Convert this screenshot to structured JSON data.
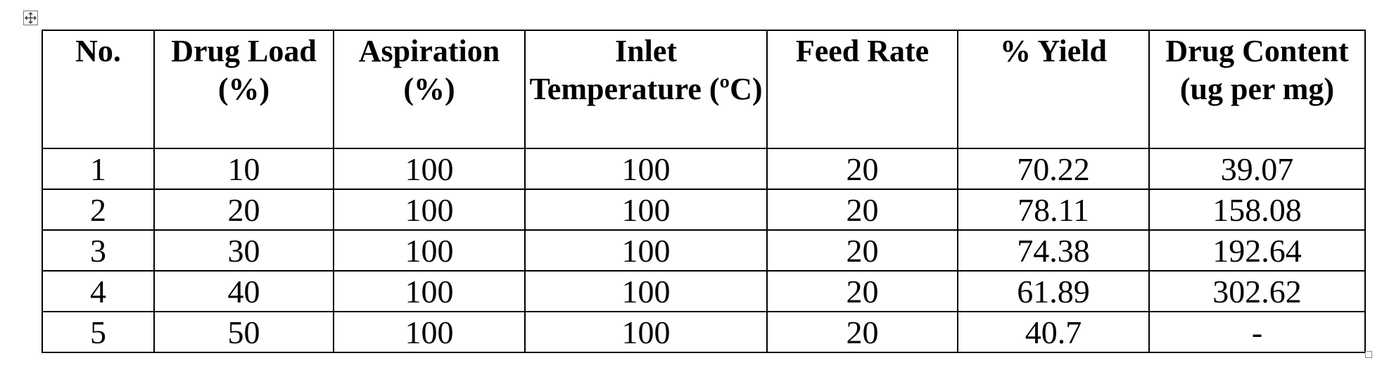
{
  "table": {
    "header": [
      "No.",
      "Drug Load (%)",
      "Aspiration (%)",
      "Inlet Temperature (ºC)",
      "Feed Rate",
      "% Yield",
      "Drug Content (ug per mg)"
    ],
    "rows": [
      [
        "1",
        "10",
        "100",
        "100",
        "20",
        "70.22",
        "39.07"
      ],
      [
        "2",
        "20",
        "100",
        "100",
        "20",
        "78.11",
        "158.08"
      ],
      [
        "3",
        "30",
        "100",
        "100",
        "20",
        "74.38",
        "192.64"
      ],
      [
        "4",
        "40",
        "100",
        "100",
        "20",
        "61.89",
        "302.62"
      ],
      [
        "5",
        "50",
        "100",
        "100",
        "20",
        "40.7",
        "-"
      ]
    ]
  }
}
